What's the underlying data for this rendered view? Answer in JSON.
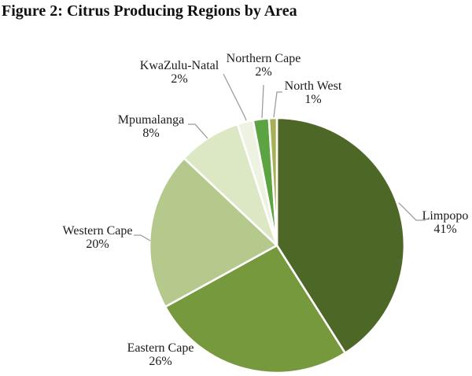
{
  "chart_data": {
    "type": "pie",
    "title": "Figure 2: Citrus Producing Regions by Area",
    "unit": "%",
    "direction": "clockwise",
    "start_angle_deg": 0,
    "legend_position": "none",
    "labels_style": "outside-with-leader-lines",
    "slice_border_color": "#FFFFFF",
    "leader_line_color": "#9C9C9C",
    "slices": [
      {
        "label": "Limpopo",
        "value": 41,
        "pct_label": "41%",
        "color": "#4D6727"
      },
      {
        "label": "Eastern Cape",
        "value": 26,
        "pct_label": "26%",
        "color": "#76993D"
      },
      {
        "label": "Western Cape",
        "value": 20,
        "pct_label": "20%",
        "color": "#B5C98C"
      },
      {
        "label": "Mpumalanga",
        "value": 8,
        "pct_label": "8%",
        "color": "#DCE8C4"
      },
      {
        "label": "KwaZulu-Natal",
        "value": 2,
        "pct_label": "2%",
        "color": "#EEF2E1"
      },
      {
        "label": "Northern Cape",
        "value": 2,
        "pct_label": "2%",
        "color": "#5CA342"
      },
      {
        "label": "North West",
        "value": 1,
        "pct_label": "1%",
        "color": "#A6B156"
      }
    ]
  }
}
